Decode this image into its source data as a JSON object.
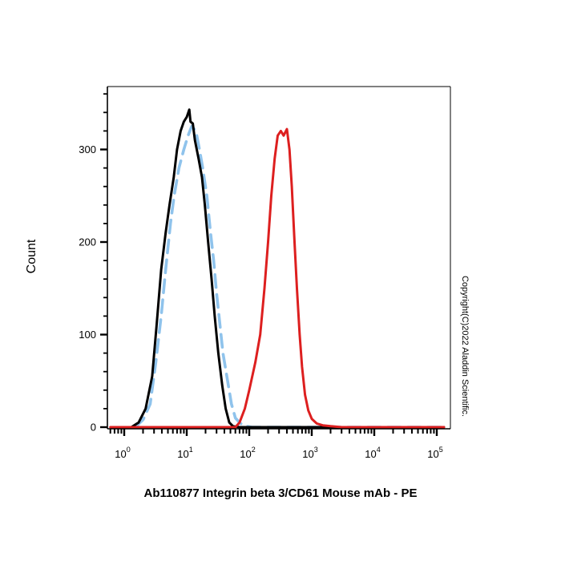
{
  "chart_data": {
    "type": "line",
    "title": "",
    "xlabel": "Ab110877 Integrin beta 3/CD61 Mouse mAb - PE",
    "ylabel": "Count",
    "xscale": "log",
    "xlim": [
      0.6,
      130000
    ],
    "ylim": [
      0,
      370
    ],
    "x_ticks": [
      {
        "base": "10",
        "exp": "0",
        "value": 1
      },
      {
        "base": "10",
        "exp": "1",
        "value": 10
      },
      {
        "base": "10",
        "exp": "2",
        "value": 100
      },
      {
        "base": "10",
        "exp": "3",
        "value": 1000
      },
      {
        "base": "10",
        "exp": "4",
        "value": 10000
      },
      {
        "base": "10",
        "exp": "5",
        "value": 100000
      }
    ],
    "y_ticks": [
      {
        "label": "0",
        "value": 0
      },
      {
        "label": "100",
        "value": 100
      },
      {
        "label": "200",
        "value": 200
      },
      {
        "label": "300",
        "value": 300
      }
    ],
    "annotation": "Copyright(C)2022 Aladdin Scientific.",
    "series": [
      {
        "color": "#000000",
        "style": "solid",
        "points": [
          [
            1.3,
            0
          ],
          [
            1.7,
            5
          ],
          [
            2.2,
            20
          ],
          [
            2.8,
            55
          ],
          [
            3.3,
            110
          ],
          [
            3.9,
            170
          ],
          [
            4.6,
            210
          ],
          [
            5.3,
            240
          ],
          [
            6.2,
            270
          ],
          [
            7.0,
            300
          ],
          [
            8.0,
            320
          ],
          [
            9.0,
            330
          ],
          [
            10.0,
            335
          ],
          [
            11.0,
            343
          ],
          [
            11.5,
            330
          ],
          [
            12.5,
            328
          ],
          [
            13.5,
            310
          ],
          [
            15.5,
            290
          ],
          [
            17.5,
            270
          ],
          [
            19.5,
            240
          ],
          [
            22.0,
            200
          ],
          [
            25.0,
            160
          ],
          [
            28.0,
            120
          ],
          [
            32.0,
            80
          ],
          [
            37.0,
            45
          ],
          [
            42.0,
            20
          ],
          [
            48.0,
            5
          ],
          [
            55.0,
            1
          ],
          [
            70.0,
            0
          ],
          [
            150.0,
            0
          ],
          [
            3000.0,
            0
          ],
          [
            130000,
            0
          ]
        ]
      },
      {
        "color": "#8fc3ec",
        "style": "dashed",
        "points": [
          [
            1.5,
            0
          ],
          [
            2.0,
            8
          ],
          [
            2.6,
            25
          ],
          [
            3.2,
            70
          ],
          [
            3.9,
            120
          ],
          [
            4.6,
            170
          ],
          [
            5.5,
            220
          ],
          [
            6.3,
            250
          ],
          [
            7.5,
            280
          ],
          [
            9.0,
            300
          ],
          [
            10.5,
            315
          ],
          [
            12.0,
            325
          ],
          [
            14.0,
            320
          ],
          [
            16.0,
            300
          ],
          [
            18.0,
            280
          ],
          [
            21.0,
            250
          ],
          [
            24.0,
            210
          ],
          [
            27.0,
            180
          ],
          [
            30.0,
            145
          ],
          [
            34.0,
            110
          ],
          [
            38.0,
            80
          ],
          [
            45.0,
            50
          ],
          [
            52.0,
            25
          ],
          [
            60.0,
            10
          ],
          [
            72.0,
            4
          ],
          [
            90.0,
            1
          ],
          [
            110.0,
            0
          ],
          [
            130000,
            0
          ]
        ]
      },
      {
        "color": "#dd1f1f",
        "style": "solid",
        "points": [
          [
            0.6,
            0
          ],
          [
            60.0,
            0
          ],
          [
            70.0,
            5
          ],
          [
            85.0,
            20
          ],
          [
            100.0,
            40
          ],
          [
            125.0,
            70
          ],
          [
            150.0,
            100
          ],
          [
            175.0,
            150
          ],
          [
            200.0,
            200
          ],
          [
            225.0,
            250
          ],
          [
            255.0,
            290
          ],
          [
            285.0,
            315
          ],
          [
            320.0,
            320
          ],
          [
            355.0,
            315
          ],
          [
            400.0,
            322
          ],
          [
            440.0,
            300
          ],
          [
            480.0,
            260
          ],
          [
            530.0,
            200
          ],
          [
            580.0,
            150
          ],
          [
            640.0,
            100
          ],
          [
            700.0,
            65
          ],
          [
            780.0,
            35
          ],
          [
            880.0,
            18
          ],
          [
            1000.0,
            9
          ],
          [
            1200.0,
            4
          ],
          [
            1500.0,
            2
          ],
          [
            2000.0,
            1
          ],
          [
            3000.0,
            0
          ],
          [
            130000,
            0
          ]
        ]
      }
    ]
  }
}
